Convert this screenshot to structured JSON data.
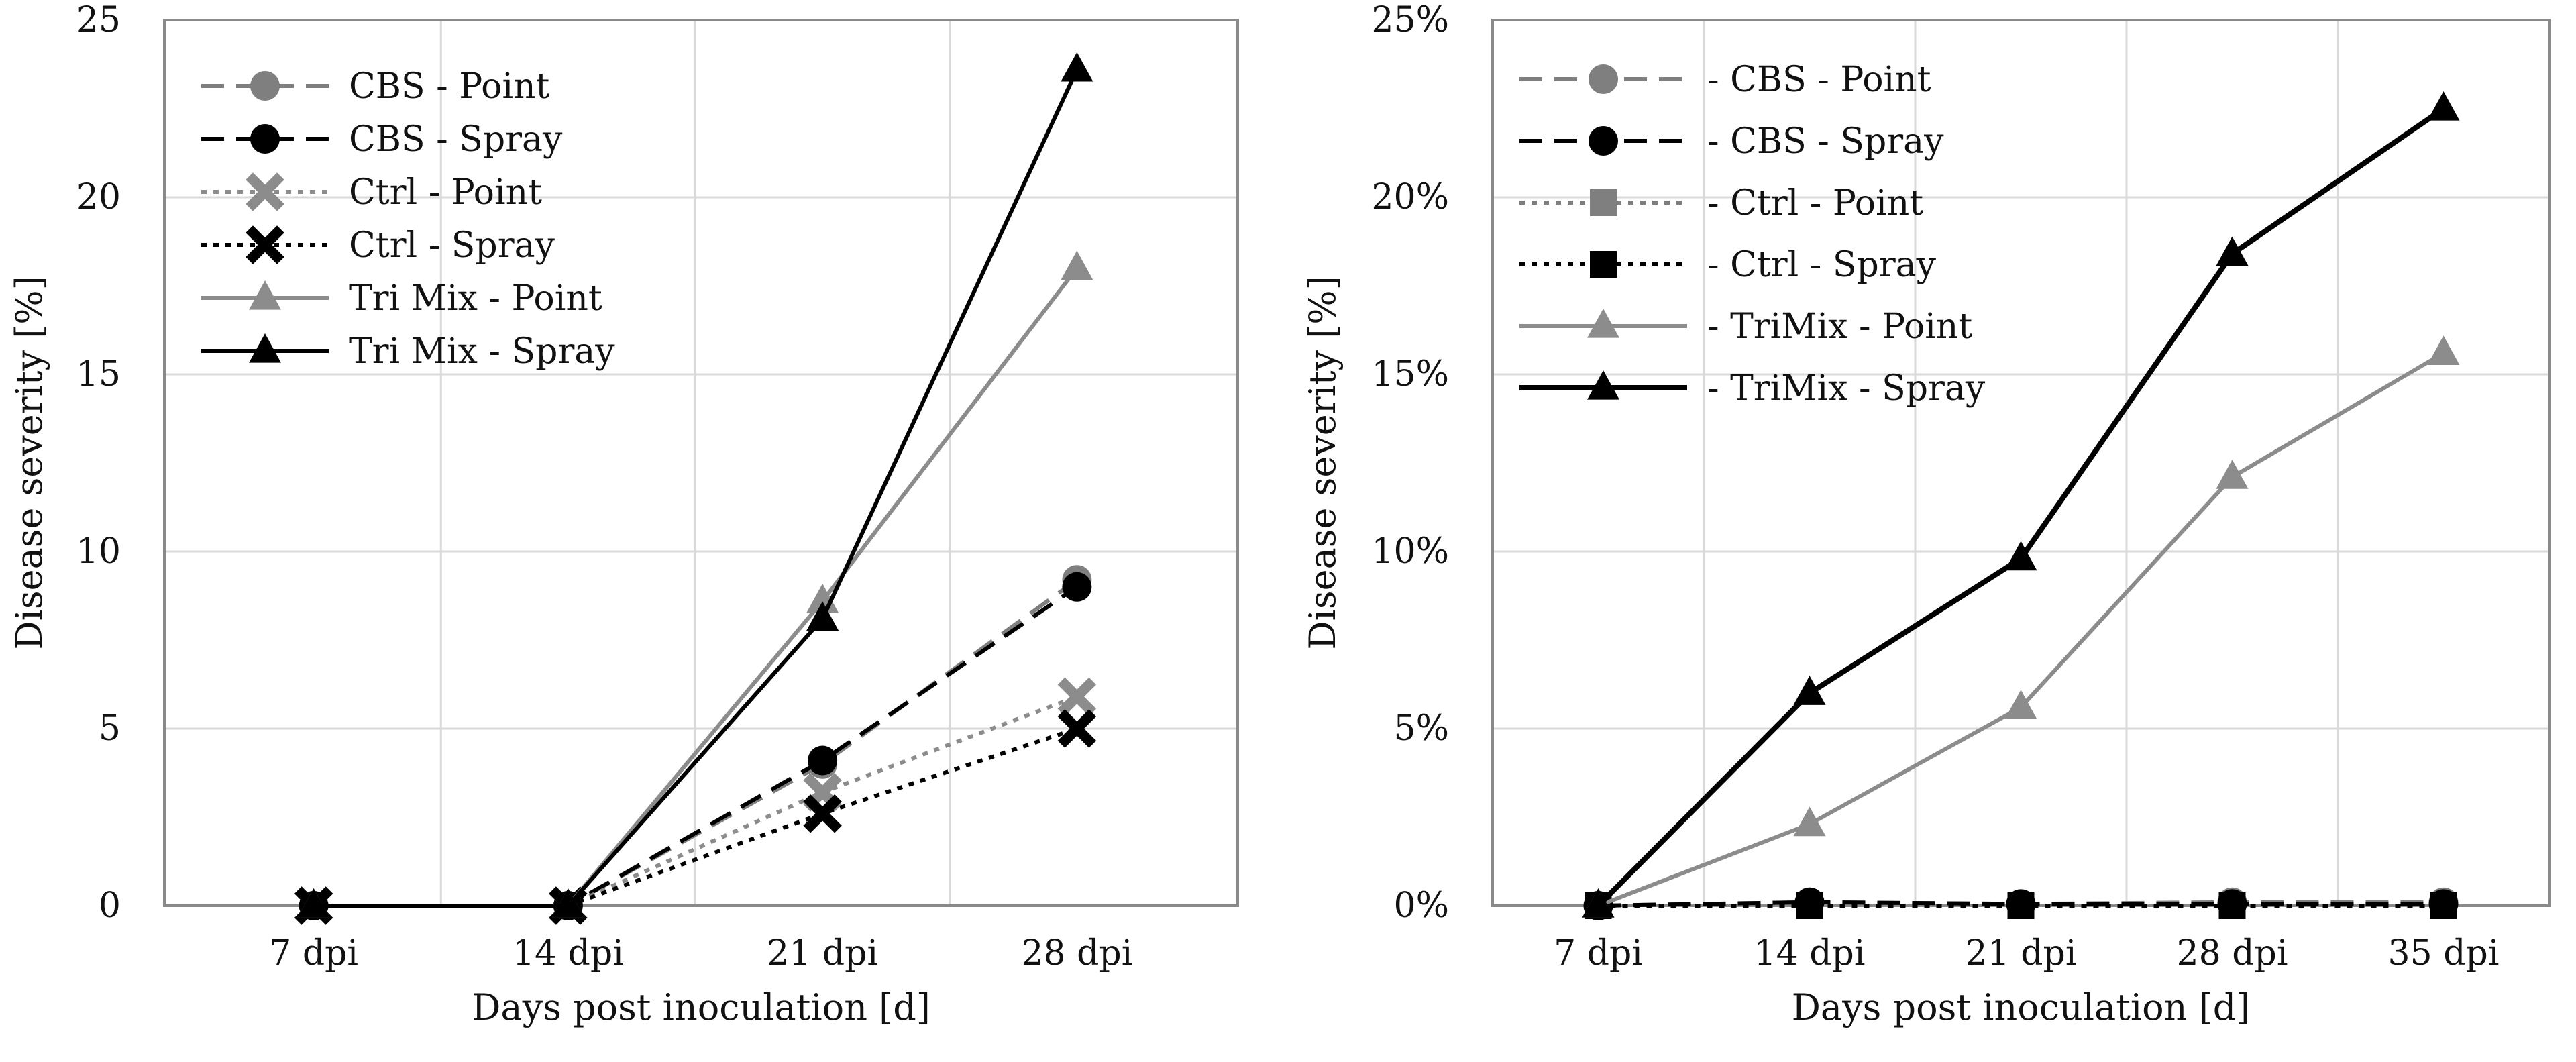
{
  "chart_data": [
    {
      "type": "line",
      "title": "",
      "xlabel": "Days post inoculation [d]",
      "ylabel": "Disease severity [%]",
      "categories": [
        "7 dpi",
        "14 dpi",
        "21 dpi",
        "28 dpi"
      ],
      "ylim": [
        0,
        25
      ],
      "yticks": [
        0,
        5,
        10,
        15,
        20,
        25
      ],
      "ytick_labels": [
        "0",
        "5",
        "10",
        "15",
        "20",
        "25"
      ],
      "grid": true,
      "legend_position": "top-left",
      "series": [
        {
          "name": "CBS - Point",
          "values": [
            0,
            0,
            4.0,
            9.2
          ],
          "color": "#7f7f7f",
          "dash": "dashed",
          "marker": "circle"
        },
        {
          "name": "CBS - Spray",
          "values": [
            0,
            0,
            4.1,
            9.0
          ],
          "color": "#000000",
          "dash": "dashed",
          "marker": "circle"
        },
        {
          "name": "Ctrl - Point",
          "values": [
            0,
            0,
            3.2,
            5.9
          ],
          "color": "#8c8c8c",
          "dash": "dotted",
          "marker": "x"
        },
        {
          "name": "Ctrl - Spray",
          "values": [
            0,
            0,
            2.6,
            5.0
          ],
          "color": "#000000",
          "dash": "dotted",
          "marker": "x"
        },
        {
          "name": "Tri Mix - Point",
          "values": [
            0,
            0,
            8.6,
            18.0
          ],
          "color": "#8c8c8c",
          "dash": "solid",
          "marker": "triangle"
        },
        {
          "name": "Tri Mix - Spray",
          "values": [
            0,
            0,
            8.1,
            23.6
          ],
          "color": "#000000",
          "dash": "solid",
          "marker": "triangle"
        }
      ]
    },
    {
      "type": "line",
      "title": "",
      "xlabel": "Days post inoculation [d]",
      "ylabel": "Disease severity [%]",
      "categories": [
        "7 dpi",
        "14 dpi",
        "21 dpi",
        "28 dpi",
        "35 dpi"
      ],
      "ylim": [
        0,
        25
      ],
      "yticks": [
        0,
        5,
        10,
        15,
        20,
        25
      ],
      "ytick_labels": [
        "0%",
        "5%",
        "10%",
        "15%",
        "20%",
        "25%"
      ],
      "grid": true,
      "legend_position": "top-left",
      "series": [
        {
          "name": "CBS - Point",
          "values": [
            0,
            0.1,
            0.05,
            0.1,
            0.1
          ],
          "color": "#7f7f7f",
          "dash": "dashed",
          "marker": "circle"
        },
        {
          "name": "CBS - Spray",
          "values": [
            0,
            0.1,
            0.05,
            0.05,
            0.05
          ],
          "color": "#000000",
          "dash": "dashed",
          "marker": "circle"
        },
        {
          "name": "Ctrl - Point",
          "values": [
            0,
            0.0,
            0.0,
            0.0,
            0.0
          ],
          "color": "#7f7f7f",
          "dash": "dotted",
          "marker": "square"
        },
        {
          "name": "Ctrl - Spray",
          "values": [
            0,
            0.0,
            0.0,
            0.0,
            0.0
          ],
          "color": "#000000",
          "dash": "dotted",
          "marker": "square"
        },
        {
          "name": "TriMix - Point",
          "values": [
            0,
            2.3,
            5.6,
            12.1,
            15.6
          ],
          "color": "#8c8c8c",
          "dash": "solid",
          "marker": "triangle"
        },
        {
          "name": "TriMix - Spray",
          "values": [
            0,
            6.0,
            9.8,
            18.4,
            22.5
          ],
          "color": "#000000",
          "dash": "solid",
          "marker": "triangle"
        }
      ]
    }
  ],
  "legend_prefix": [
    "",
    "- "
  ]
}
